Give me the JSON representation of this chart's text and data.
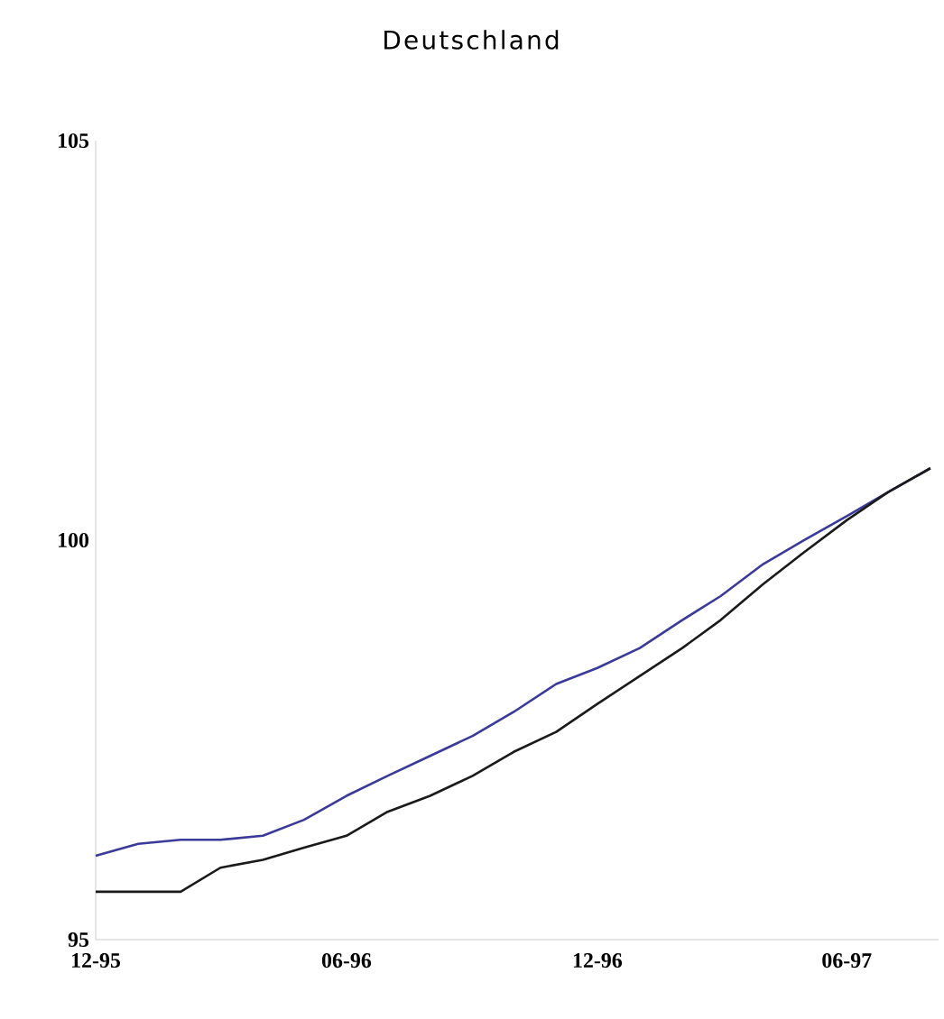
{
  "chart_data": {
    "type": "line",
    "title": "Deutschland",
    "x": [
      "1995-12",
      "1996-01",
      "1996-02",
      "1996-03",
      "1996-04",
      "1996-05",
      "1996-06",
      "1996-07",
      "1996-08",
      "1996-09",
      "1996-10",
      "1996-11",
      "1996-12",
      "1997-01",
      "1997-02",
      "1997-03",
      "1997-04",
      "1997-05",
      "1997-06",
      "1997-07",
      "1997-08"
    ],
    "series": [
      {
        "color": "#3a3a9a",
        "values": [
          96.05,
          96.2,
          96.25,
          96.25,
          96.3,
          96.5,
          96.8,
          97.05,
          97.3,
          97.55,
          97.85,
          98.2,
          98.4,
          98.65,
          99.0,
          99.3,
          99.7,
          100.0,
          100.3,
          100.6,
          100.9
        ]
      },
      {
        "color": "#1a1a1a",
        "values": [
          95.6,
          95.6,
          95.6,
          95.9,
          96.0,
          96.15,
          96.3,
          96.6,
          96.8,
          97.05,
          97.35,
          97.6,
          97.95,
          98.3,
          98.65,
          99.0,
          99.45,
          99.85,
          100.25,
          100.6,
          100.9
        ]
      }
    ],
    "xlim": [
      "1995-12-01",
      "1997-08-07"
    ],
    "ylim": [
      95,
      105
    ],
    "xticks": [
      {
        "value": "1995-12",
        "label": "12-95"
      },
      {
        "value": "1996-06",
        "label": "06-96"
      },
      {
        "value": "1996-12",
        "label": "12-96"
      },
      {
        "value": "1997-06",
        "label": "06-97"
      }
    ],
    "yticks": [
      95,
      100,
      105
    ],
    "grid": false,
    "marker": "none",
    "line_style": "solid"
  }
}
